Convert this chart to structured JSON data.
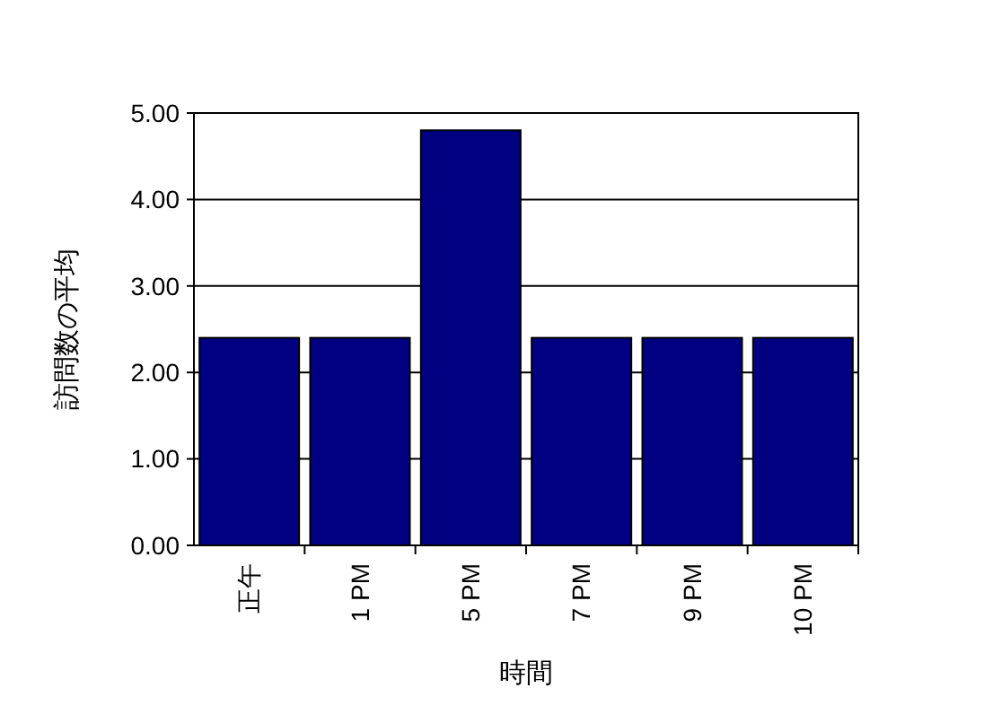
{
  "chart_data": {
    "type": "bar",
    "xlabel": "時間",
    "ylabel": "訪問数の平均",
    "categories": [
      "正午",
      "1 PM",
      "5 PM",
      "7 PM",
      "9 PM",
      "10 PM"
    ],
    "values": [
      2.4,
      2.4,
      4.8,
      2.4,
      2.4,
      2.4
    ],
    "color": "#000080",
    "ylim": [
      0,
      5
    ],
    "yticks": [
      {
        "value": 0,
        "label": "0.00"
      },
      {
        "value": 1,
        "label": "1.00"
      },
      {
        "value": 2,
        "label": "2.00"
      },
      {
        "value": 3,
        "label": "3.00"
      },
      {
        "value": 4,
        "label": "4.00"
      },
      {
        "value": 5,
        "label": "5.00"
      }
    ],
    "grid": "y"
  }
}
